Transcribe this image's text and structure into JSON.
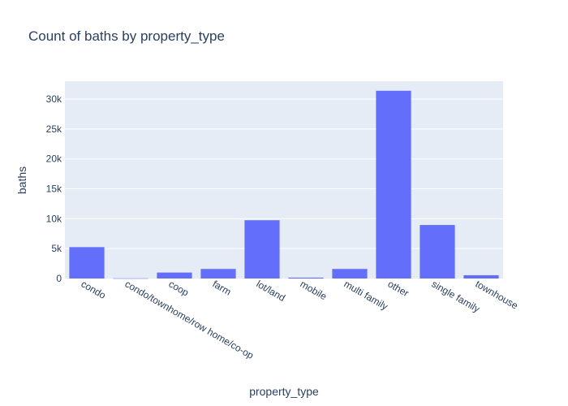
{
  "chart_data": {
    "type": "bar",
    "title": "Count of baths by property_type",
    "xlabel": "property_type",
    "ylabel": "baths",
    "categories": [
      "condo",
      "condo/townhome/row home/co-op",
      "coop",
      "farm",
      "lot/land",
      "mobile",
      "multi family",
      "other",
      "single family",
      "townhouse"
    ],
    "values": [
      5250,
      30,
      1000,
      1600,
      9750,
      150,
      1600,
      31400,
      8950,
      550
    ],
    "ylim": [
      0,
      33000
    ],
    "yticks": [
      0,
      5000,
      10000,
      15000,
      20000,
      25000,
      30000
    ],
    "ytick_labels": [
      "0",
      "5k",
      "10k",
      "15k",
      "20k",
      "25k",
      "30k"
    ],
    "grid": true,
    "colors": {
      "bar": "#636efa",
      "plot_bg": "#e5ecf6",
      "grid": "#ffffff",
      "text": "#2a3f5f"
    }
  }
}
